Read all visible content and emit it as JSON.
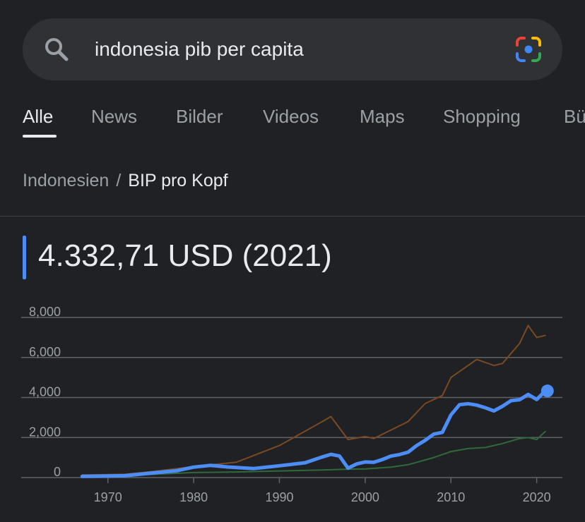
{
  "search": {
    "query": "indonesia pib per capita"
  },
  "tabs": [
    {
      "label": "Alle",
      "active": true
    },
    {
      "label": "News"
    },
    {
      "label": "Bilder"
    },
    {
      "label": "Videos"
    },
    {
      "label": "Maps"
    },
    {
      "label": "Shopping"
    },
    {
      "label": "Bü"
    }
  ],
  "breadcrumb": {
    "country": "Indonesien",
    "separator": "/",
    "metric": "BIP pro Kopf"
  },
  "headline_value": "4.332,71 USD (2021)",
  "colors": {
    "accent": "#4c8df6",
    "series_brown": "#7a4a23",
    "series_green": "#2f6b3a",
    "grid": "#5f6368"
  },
  "chart_data": {
    "type": "line",
    "y_ticks": [
      "8,000",
      "6,000",
      "4,000",
      "2,000",
      "0"
    ],
    "x_ticks": [
      "1970",
      "1980",
      "1990",
      "2000",
      "2010",
      "2020"
    ],
    "ylim": [
      0,
      8000
    ],
    "xlim": [
      1965,
      2022.5
    ],
    "series": [
      {
        "color": "#7a4a23",
        "points": [
          [
            1967,
            130
          ],
          [
            1970,
            150
          ],
          [
            1972,
            170
          ],
          [
            1975,
            290
          ],
          [
            1980,
            550
          ],
          [
            1985,
            770
          ],
          [
            1990,
            1600
          ],
          [
            1995,
            2800
          ],
          [
            1996,
            3050
          ],
          [
            1998,
            1900
          ],
          [
            2000,
            2050
          ],
          [
            2001,
            1950
          ],
          [
            2005,
            2800
          ],
          [
            2007,
            3700
          ],
          [
            2009,
            4100
          ],
          [
            2010,
            5000
          ],
          [
            2013,
            5900
          ],
          [
            2015,
            5600
          ],
          [
            2016,
            5700
          ],
          [
            2018,
            6700
          ],
          [
            2019,
            7600
          ],
          [
            2020,
            7000
          ],
          [
            2021,
            7100
          ]
        ]
      },
      {
        "color": "#2f6b3a",
        "points": [
          [
            1967,
            60
          ],
          [
            1970,
            80
          ],
          [
            1975,
            160
          ],
          [
            1980,
            250
          ],
          [
            1985,
            280
          ],
          [
            1990,
            330
          ],
          [
            1995,
            380
          ],
          [
            1998,
            420
          ],
          [
            2000,
            430
          ],
          [
            2003,
            520
          ],
          [
            2005,
            640
          ],
          [
            2008,
            1000
          ],
          [
            2010,
            1300
          ],
          [
            2012,
            1450
          ],
          [
            2014,
            1500
          ],
          [
            2016,
            1700
          ],
          [
            2018,
            1950
          ],
          [
            2019,
            2000
          ],
          [
            2020,
            1900
          ],
          [
            2021,
            2300
          ]
        ]
      },
      {
        "color": "#4c8df6",
        "highlight_last": true,
        "points": [
          [
            1967,
            55
          ],
          [
            1970,
            80
          ],
          [
            1972,
            90
          ],
          [
            1975,
            220
          ],
          [
            1978,
            340
          ],
          [
            1980,
            520
          ],
          [
            1982,
            610
          ],
          [
            1984,
            530
          ],
          [
            1987,
            450
          ],
          [
            1990,
            590
          ],
          [
            1993,
            740
          ],
          [
            1995,
            1030
          ],
          [
            1996,
            1160
          ],
          [
            1997,
            1080
          ],
          [
            1998,
            470
          ],
          [
            1999,
            680
          ],
          [
            2000,
            780
          ],
          [
            2001,
            760
          ],
          [
            2002,
            900
          ],
          [
            2003,
            1070
          ],
          [
            2004,
            1150
          ],
          [
            2005,
            1270
          ],
          [
            2006,
            1600
          ],
          [
            2007,
            1860
          ],
          [
            2008,
            2170
          ],
          [
            2009,
            2260
          ],
          [
            2010,
            3130
          ],
          [
            2011,
            3640
          ],
          [
            2012,
            3690
          ],
          [
            2013,
            3620
          ],
          [
            2014,
            3490
          ],
          [
            2015,
            3330
          ],
          [
            2016,
            3560
          ],
          [
            2017,
            3840
          ],
          [
            2018,
            3890
          ],
          [
            2019,
            4150
          ],
          [
            2020,
            3900
          ],
          [
            2021,
            4330
          ]
        ]
      }
    ]
  }
}
